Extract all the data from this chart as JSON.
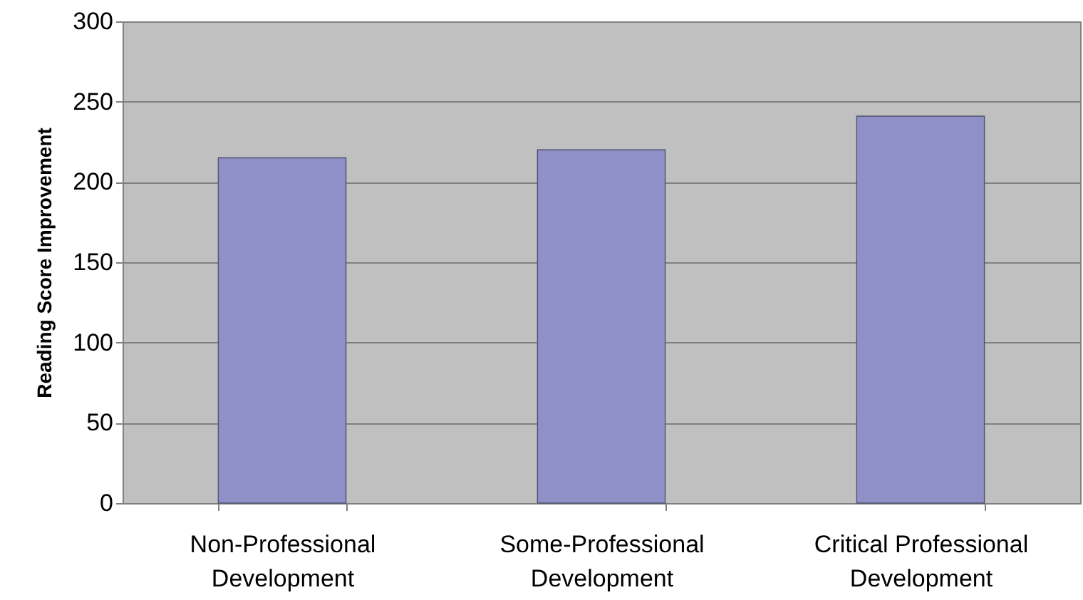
{
  "chart_data": {
    "type": "bar",
    "ylabel": "Reading Score Improvement",
    "categories": [
      "Non-Professional Development",
      "Some-Professional Development",
      "Critical Professional Development"
    ],
    "values": [
      215,
      220,
      241
    ],
    "color": "#9090c8",
    "ylim": [
      0,
      300
    ],
    "yticks": [
      0,
      50,
      100,
      150,
      200,
      250,
      300
    ],
    "grid": "y"
  }
}
